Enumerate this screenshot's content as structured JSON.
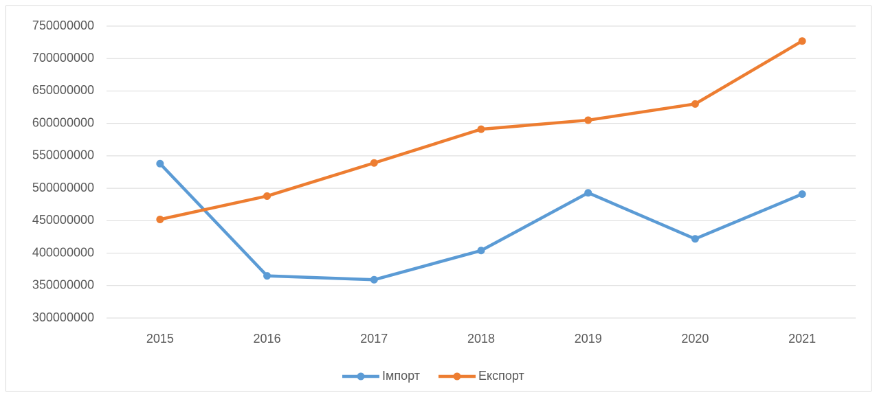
{
  "chart_data": {
    "type": "line",
    "categories": [
      "2015",
      "2016",
      "2017",
      "2018",
      "2019",
      "2020",
      "2021"
    ],
    "series": [
      {
        "name": "Імпорт",
        "color": "#5b9bd5",
        "values": [
          538000000,
          365000000,
          359000000,
          404000000,
          493000000,
          422000000,
          491000000
        ]
      },
      {
        "name": "Експорт",
        "color": "#ed7d31",
        "values": [
          452000000,
          488000000,
          539000000,
          591000000,
          605000000,
          630000000,
          727000000
        ]
      }
    ],
    "ylim": [
      300000000,
      750000000
    ],
    "yticks": [
      300000000,
      350000000,
      400000000,
      450000000,
      500000000,
      550000000,
      600000000,
      650000000,
      700000000,
      750000000
    ],
    "grid": true,
    "legend": "bottom"
  }
}
